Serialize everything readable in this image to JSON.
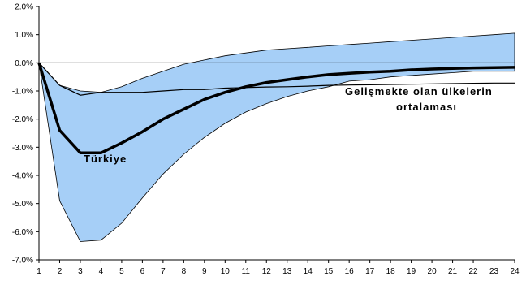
{
  "chart_data": {
    "type": "area",
    "x": [
      1,
      2,
      3,
      4,
      5,
      6,
      7,
      8,
      9,
      10,
      11,
      12,
      13,
      14,
      15,
      16,
      17,
      18,
      19,
      20,
      21,
      22,
      23,
      24
    ],
    "ylim": [
      -7.0,
      2.0
    ],
    "yticks": [
      2.0,
      1.0,
      0.0,
      -1.0,
      -2.0,
      -3.0,
      -4.0,
      -5.0,
      -6.0,
      -7.0
    ],
    "ytick_labels": [
      "2.0%",
      "1.0%",
      "0.0%",
      "-1.0%",
      "-2.0%",
      "-3.0%",
      "-4.0%",
      "-5.0%",
      "-6.0%",
      "-7.0%"
    ],
    "xtick_labels": [
      "1",
      "2",
      "3",
      "4",
      "5",
      "6",
      "7",
      "8",
      "9",
      "10",
      "11",
      "12",
      "13",
      "14",
      "15",
      "16",
      "17",
      "18",
      "19",
      "20",
      "21",
      "22",
      "23",
      "24"
    ],
    "band_upper": [
      0.0,
      -0.8,
      -1.0,
      -1.05,
      -0.85,
      -0.55,
      -0.3,
      -0.05,
      0.1,
      0.25,
      0.35,
      0.45,
      0.5,
      0.55,
      0.6,
      0.65,
      0.7,
      0.75,
      0.8,
      0.85,
      0.9,
      0.95,
      1.0,
      1.05
    ],
    "band_lower": [
      0.0,
      -4.9,
      -6.35,
      -6.3,
      -5.7,
      -4.8,
      -3.95,
      -3.25,
      -2.65,
      -2.15,
      -1.75,
      -1.45,
      -1.2,
      -1.0,
      -0.85,
      -0.65,
      -0.6,
      -0.5,
      -0.45,
      -0.4,
      -0.35,
      -0.3,
      -0.3,
      -0.3
    ],
    "series": [
      {
        "name": "Türkiye",
        "values": [
          0.0,
          -2.4,
          -3.2,
          -3.2,
          -2.85,
          -2.45,
          -2.0,
          -1.65,
          -1.3,
          -1.05,
          -0.85,
          -0.7,
          -0.6,
          -0.5,
          -0.42,
          -0.37,
          -0.33,
          -0.3,
          -0.25,
          -0.22,
          -0.2,
          -0.18,
          -0.17,
          -0.16
        ]
      },
      {
        "name": "Gelişmekte olan ülkelerin ortalaması",
        "values": [
          0.0,
          -0.8,
          -1.15,
          -1.05,
          -1.05,
          -1.05,
          -1.0,
          -0.95,
          -0.95,
          -0.9,
          -0.88,
          -0.86,
          -0.85,
          -0.83,
          -0.8,
          -0.79,
          -0.78,
          -0.77,
          -0.76,
          -0.75,
          -0.74,
          -0.73,
          -0.72,
          -0.72
        ]
      }
    ],
    "annotations": {
      "turkiye": "Türkiye",
      "em_line1": "Gelişmekte olan ülkelerin",
      "em_line2": "ortalaması"
    },
    "colors": {
      "band": "#a6cff7",
      "line": "#000000"
    }
  }
}
